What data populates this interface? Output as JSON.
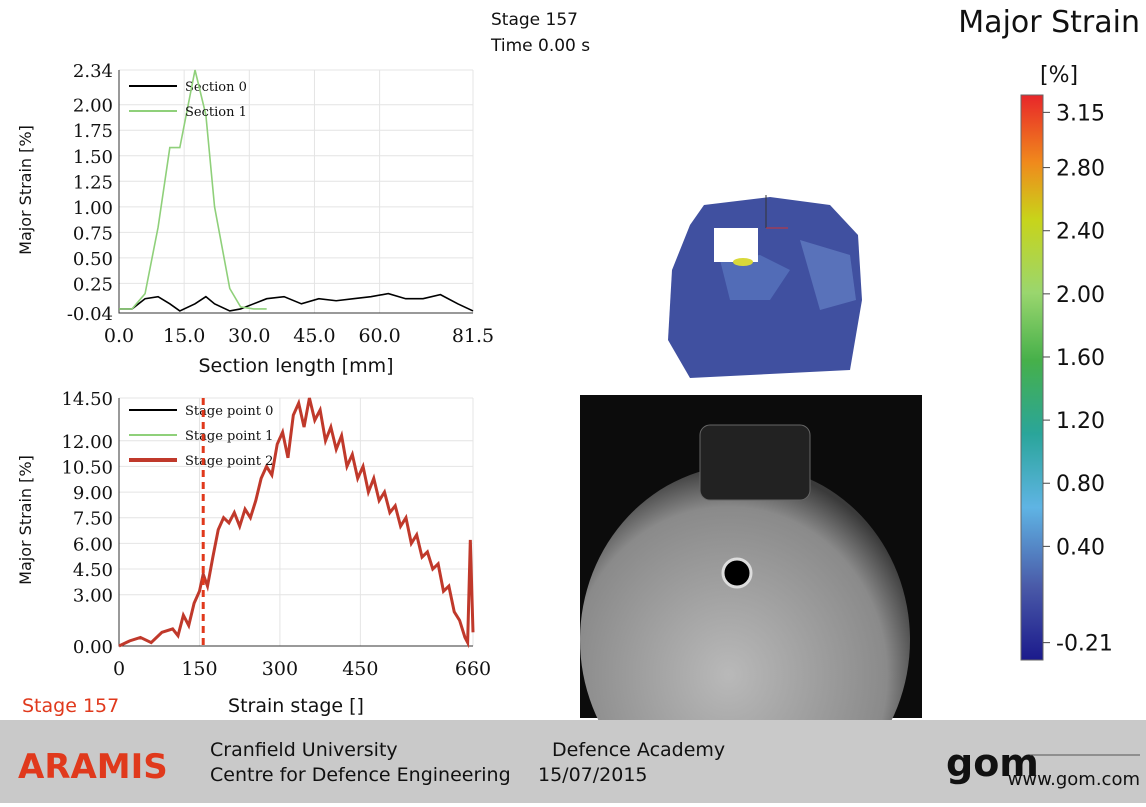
{
  "header": {
    "stage": "Stage 157",
    "time": "Time  0.00 s",
    "title": "Major Strain"
  },
  "colorbar": {
    "unit": "[%]",
    "lim": [
      -0.32,
      3.26
    ],
    "ticks": [
      3.15,
      {
        "value": 2.8,
        "label": "2.80"
      },
      {
        "value": 2.4,
        "label": "2.40"
      },
      {
        "value": 2.0,
        "label": "2.00"
      },
      {
        "value": 1.6,
        "label": "1.60"
      },
      {
        "value": 1.2,
        "label": "1.20"
      },
      {
        "value": 0.8,
        "label": "0.80"
      },
      {
        "value": 0.4,
        "label": "0.40"
      },
      -0.21
    ]
  },
  "chart_data": [
    {
      "type": "line",
      "xlabel": "Section length [mm]",
      "ylabel": "Major Strain [%]",
      "grid": true,
      "x": [
        0,
        3,
        6,
        9,
        11.7,
        14,
        17.5,
        20,
        22,
        25.5,
        28,
        31,
        34,
        38,
        42,
        46,
        50,
        54,
        58,
        62,
        66,
        70,
        74,
        78,
        81.5
      ],
      "xlim": [
        0,
        81.5
      ],
      "ylim": [
        -0.04,
        2.34
      ],
      "xticks": [
        {
          "value": 0,
          "label": "0.0"
        },
        {
          "value": 15,
          "label": "15.0"
        },
        {
          "value": 30,
          "label": "30.0"
        },
        {
          "value": 45,
          "label": "45.0"
        },
        {
          "value": 60,
          "label": "60.0"
        },
        81.5
      ],
      "yticks": [
        -0.04,
        0.25,
        {
          "value": 0.5,
          "label": "0.50"
        },
        0.75,
        {
          "value": 1,
          "label": "1.00"
        },
        1.25,
        {
          "value": 1.5,
          "label": "1.50"
        },
        1.75,
        {
          "value": 2,
          "label": "2.00"
        },
        2.34
      ],
      "series": [
        {
          "name": "Section 0",
          "color": "#000000",
          "values": [
            0.0,
            0.0,
            0.1,
            0.12,
            0.05,
            -0.02,
            0.05,
            0.12,
            0.05,
            -0.02,
            0.0,
            0.05,
            0.1,
            0.12,
            0.05,
            0.1,
            0.08,
            0.1,
            0.12,
            0.15,
            0.1,
            0.1,
            0.14,
            0.05,
            -0.02
          ]
        },
        {
          "name": "Section 1",
          "color": "#8fd07a",
          "values": [
            0.0,
            0.0,
            0.15,
            0.8,
            1.58,
            1.58,
            2.34,
            1.9,
            1.0,
            0.2,
            0.02,
            0.0,
            0.0,
            null,
            null,
            null,
            null,
            null,
            null,
            null,
            null,
            null,
            null,
            null,
            null
          ]
        }
      ]
    },
    {
      "type": "line",
      "xlabel": "Strain stage []",
      "ylabel": "Major Strain [%]",
      "grid": true,
      "marker_x": 157,
      "marker_label": "Stage 157",
      "x": [
        0,
        20,
        40,
        60,
        80,
        100,
        110,
        120,
        130,
        140,
        150,
        157,
        165,
        175,
        185,
        195,
        205,
        215,
        225,
        235,
        245,
        255,
        265,
        275,
        285,
        295,
        305,
        315,
        325,
        335,
        345,
        355,
        365,
        375,
        385,
        395,
        405,
        415,
        425,
        435,
        445,
        455,
        465,
        475,
        485,
        495,
        505,
        515,
        525,
        535,
        545,
        555,
        565,
        575,
        585,
        595,
        605,
        615,
        625,
        635,
        645,
        650,
        655,
        660
      ],
      "xlim": [
        0,
        660
      ],
      "ylim": [
        0,
        14.5
      ],
      "xticks": [
        0,
        150,
        300,
        450,
        660
      ],
      "yticks": [
        {
          "value": 0,
          "label": "0.00"
        },
        {
          "value": 3,
          "label": "3.00"
        },
        {
          "value": 4.5,
          "label": "4.50"
        },
        {
          "value": 6,
          "label": "6.00"
        },
        {
          "value": 7.5,
          "label": "7.50"
        },
        {
          "value": 9,
          "label": "9.00"
        },
        {
          "value": 10.5,
          "label": "10.50"
        },
        {
          "value": 12,
          "label": "12.00"
        },
        {
          "value": 14.5,
          "label": "14.50"
        }
      ],
      "series": [
        {
          "name": "Stage point 0",
          "color": "#000000",
          "values": [
            null,
            null,
            null,
            null,
            null,
            null,
            null,
            null,
            null,
            null,
            null,
            null,
            null,
            null,
            null,
            null,
            null,
            null,
            null,
            null,
            null,
            null,
            null,
            null,
            null,
            null,
            null,
            null,
            null,
            null,
            null,
            null,
            null,
            null,
            null,
            null,
            null,
            null,
            null,
            null,
            null,
            null,
            null,
            null,
            null,
            null,
            null,
            null,
            null,
            null,
            null,
            null,
            null,
            null,
            null,
            null,
            null,
            null,
            null,
            null,
            null,
            null,
            null,
            null
          ]
        },
        {
          "name": "Stage point 1",
          "color": "#8fd07a",
          "values": [
            null,
            null,
            null,
            null,
            null,
            null,
            null,
            null,
            null,
            null,
            null,
            null,
            null,
            null,
            null,
            null,
            null,
            null,
            null,
            null,
            null,
            null,
            null,
            null,
            null,
            null,
            null,
            null,
            null,
            null,
            null,
            null,
            null,
            null,
            null,
            null,
            null,
            null,
            null,
            null,
            null,
            null,
            null,
            null,
            null,
            null,
            null,
            null,
            null,
            null,
            null,
            null,
            null,
            null,
            null,
            null,
            null,
            null,
            null,
            null,
            null,
            null,
            null,
            null
          ]
        },
        {
          "name": "Stage point 2",
          "color": "#c0392b",
          "values": [
            0.0,
            0.3,
            0.5,
            0.2,
            0.8,
            1.0,
            0.6,
            1.8,
            1.2,
            2.5,
            3.2,
            4.2,
            3.5,
            5.2,
            6.8,
            7.5,
            7.2,
            7.8,
            7.0,
            8.0,
            7.5,
            8.5,
            9.8,
            10.5,
            10.0,
            11.8,
            12.5,
            11.0,
            13.5,
            14.2,
            12.8,
            14.5,
            13.2,
            13.8,
            12.0,
            12.8,
            11.5,
            12.3,
            10.5,
            11.2,
            9.8,
            10.5,
            9.0,
            9.8,
            8.5,
            9.0,
            7.8,
            8.2,
            7.0,
            7.5,
            6.0,
            6.5,
            5.2,
            5.5,
            4.5,
            4.8,
            3.2,
            3.5,
            2.0,
            1.5,
            0.5,
            0.2,
            6.2,
            0.8
          ]
        }
      ]
    }
  ],
  "footer": {
    "product": "ARAMIS",
    "org": "Cranfield University",
    "dept": "Centre for Defence Engineering",
    "site": "Defence Academy",
    "date": "15/07/2015",
    "logo": "gom",
    "url": "www.gom.com"
  }
}
